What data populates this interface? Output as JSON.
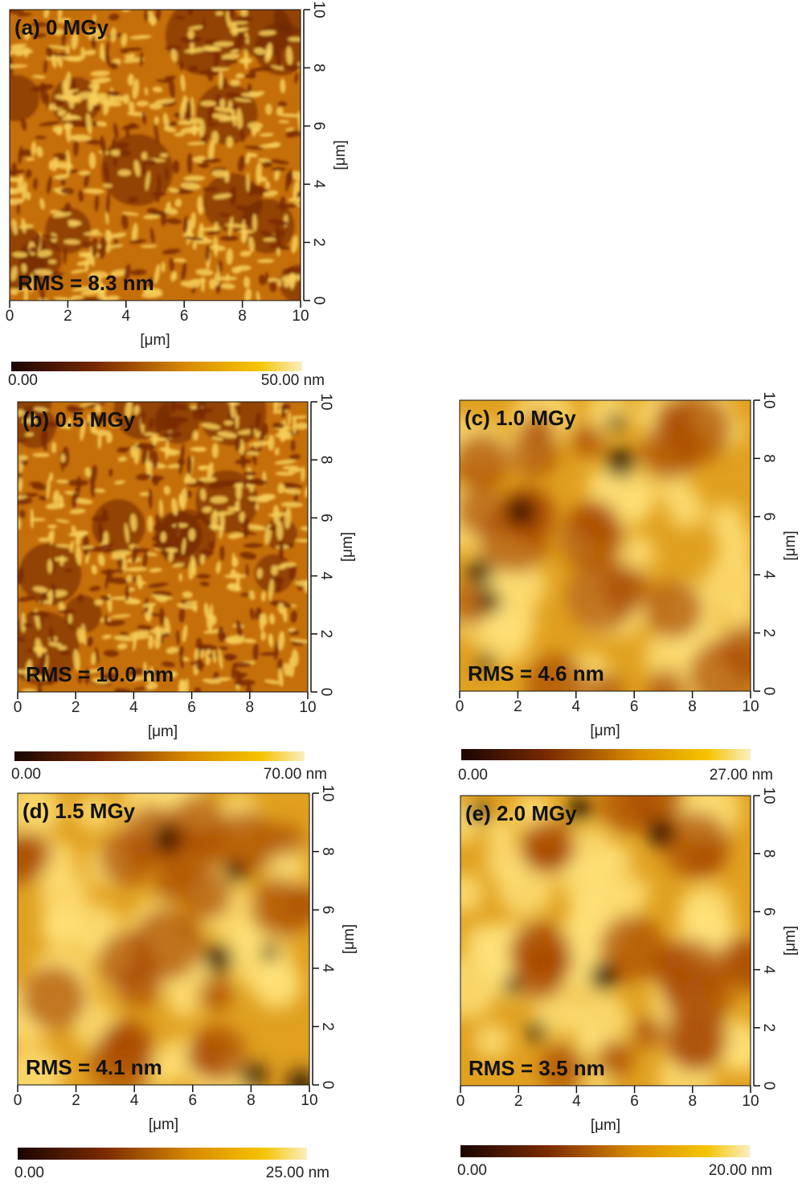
{
  "panels": [
    {
      "title": "(a) 0 MGy",
      "rms": "RMS = 8.3 nm",
      "x_label": "[μm]",
      "y_label": "[μm]",
      "xlim": [
        0,
        10
      ],
      "ylim": [
        0,
        10
      ],
      "xticks": [
        0,
        2,
        4,
        6,
        8,
        10
      ],
      "yticks": [
        0,
        2,
        4,
        6,
        8,
        10
      ],
      "colorbar": {
        "min_label": "0.00",
        "max_label": "50.00 nm"
      }
    },
    {
      "title": "(b) 0.5 MGy",
      "rms": "RMS = 10.0 nm",
      "x_label": "[μm]",
      "y_label": "[μm]",
      "xlim": [
        0,
        10
      ],
      "ylim": [
        0,
        10
      ],
      "xticks": [
        0,
        2,
        4,
        6,
        8,
        10
      ],
      "yticks": [
        0,
        2,
        4,
        6,
        8,
        10
      ],
      "colorbar": {
        "min_label": "0.00",
        "max_label": "70.00 nm"
      }
    },
    {
      "title": "(c) 1.0 MGy",
      "rms": "RMS = 4.6 nm",
      "x_label": "[μm]",
      "y_label": "[μm]",
      "xlim": [
        0,
        10
      ],
      "ylim": [
        0,
        10
      ],
      "xticks": [
        0,
        2,
        4,
        6,
        8,
        10
      ],
      "yticks": [
        0,
        2,
        4,
        6,
        8,
        10
      ],
      "colorbar": {
        "min_label": "0.00",
        "max_label": "27.00 nm"
      }
    },
    {
      "title": "(d) 1.5 MGy",
      "rms": "RMS = 4.1 nm",
      "x_label": "[μm]",
      "y_label": "[μm]",
      "xlim": [
        0,
        10
      ],
      "ylim": [
        0,
        10
      ],
      "xticks": [
        0,
        2,
        4,
        6,
        8,
        10
      ],
      "yticks": [
        0,
        2,
        4,
        6,
        8,
        10
      ],
      "colorbar": {
        "min_label": "0.00",
        "max_label": "25.00 nm"
      }
    },
    {
      "title": "(e) 2.0 MGy",
      "rms": "RMS = 3.5 nm",
      "x_label": "[μm]",
      "y_label": "[μm]",
      "xlim": [
        0,
        10
      ],
      "ylim": [
        0,
        10
      ],
      "xticks": [
        0,
        2,
        4,
        6,
        8,
        10
      ],
      "yticks": [
        0,
        2,
        4,
        6,
        8,
        10
      ],
      "colorbar": {
        "min_label": "0.00",
        "max_label": "20.00 nm"
      }
    }
  ]
}
